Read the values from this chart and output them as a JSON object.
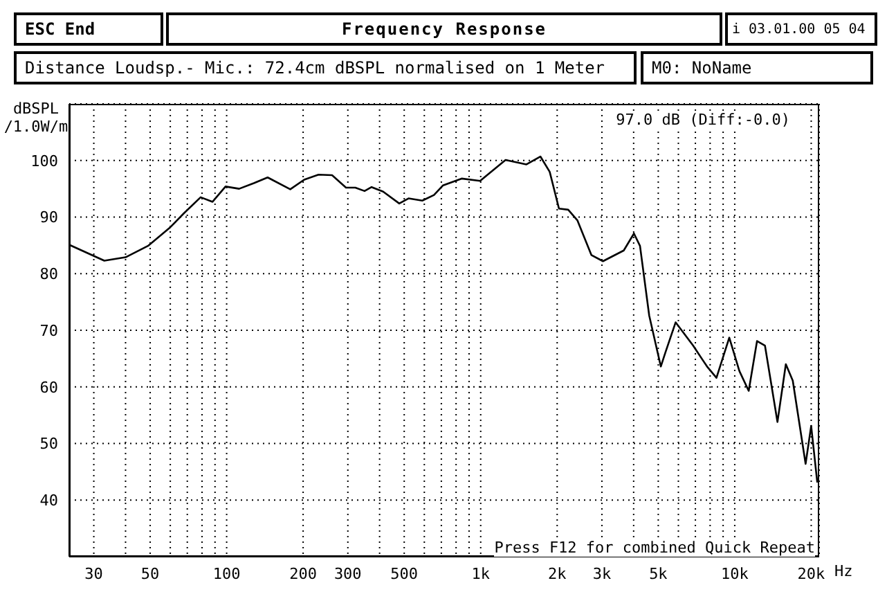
{
  "chart_data": {
    "type": "line",
    "title": "Frequency Response",
    "subtitle": "Distance Loudsp.- Mic.: 72.4cm dBSPL normalised on 1 Meter",
    "ylabel": "dBSPL /1.0W/m",
    "xlabel": "Hz",
    "annotations": [
      "ESC End",
      "i 03.01.00 05 04",
      "M0: NoName",
      "97.0 dB (Diff:-0.0)",
      "Press F12 for combined Quick Repeat"
    ],
    "log": "x",
    "grid": true,
    "color": "#000000",
    "x": [
      24,
      33,
      40,
      49,
      60,
      68,
      79,
      88,
      99,
      112,
      128,
      145,
      178,
      202,
      230,
      260,
      295,
      321,
      349,
      372,
      413,
      478,
      520,
      589,
      655,
      711,
      841,
      995,
      1253,
      1513,
      1718,
      1869,
      2033,
      2210,
      2404,
      2727,
      3029,
      3657,
      4011,
      4237,
      4606,
      5117,
      5336,
      5851,
      6855,
      7780,
      8473,
      9517,
      10430,
      11350,
      12240,
      13150,
      14730,
      15890,
      16920,
      19010,
      19990,
      21130
    ],
    "values": [
      85.1,
      82.3,
      82.9,
      84.9,
      88.2,
      90.7,
      93.5,
      92.7,
      95.4,
      95.0,
      96.0,
      97.0,
      94.9,
      96.6,
      97.5,
      97.4,
      95.2,
      95.2,
      94.6,
      95.3,
      94.5,
      92.4,
      93.3,
      92.9,
      93.9,
      95.6,
      96.8,
      96.4,
      100.1,
      99.3,
      100.7,
      98.0,
      91.5,
      91.3,
      89.4,
      83.3,
      82.2,
      84.1,
      87.1,
      84.9,
      72.6,
      63.6,
      66.1,
      71.4,
      67.3,
      63.6,
      61.6,
      68.7,
      62.8,
      59.3,
      68.1,
      67.3,
      53.8,
      64.0,
      61.1,
      46.4,
      53.1,
      43.1
    ],
    "xlim": [
      24,
      21500
    ],
    "xticks": [
      30,
      {
        "value": 40,
        "label": null
      },
      50,
      {
        "value": 60,
        "label": null
      },
      {
        "value": 70,
        "label": null
      },
      {
        "value": 80,
        "label": null
      },
      {
        "value": 90,
        "label": null
      },
      100,
      200,
      300,
      {
        "value": 400,
        "label": null
      },
      500,
      {
        "value": 600,
        "label": null
      },
      {
        "value": 700,
        "label": null
      },
      {
        "value": 800,
        "label": null
      },
      {
        "value": 900,
        "label": null
      },
      {
        "value": 1000,
        "label": "1k"
      },
      {
        "value": 2000,
        "label": "2k"
      },
      {
        "value": 3000,
        "label": "3k"
      },
      {
        "value": 4000,
        "label": null
      },
      {
        "value": 5000,
        "label": "5k"
      },
      {
        "value": 6000,
        "label": null
      },
      {
        "value": 7000,
        "label": null
      },
      {
        "value": 8000,
        "label": null
      },
      {
        "value": 9000,
        "label": null
      },
      {
        "value": 10000,
        "label": "10k"
      },
      {
        "value": 20000,
        "label": "20k"
      }
    ],
    "ylim": [
      30,
      110
    ],
    "yticks": [
      40,
      50,
      60,
      70,
      80,
      90,
      100
    ]
  }
}
